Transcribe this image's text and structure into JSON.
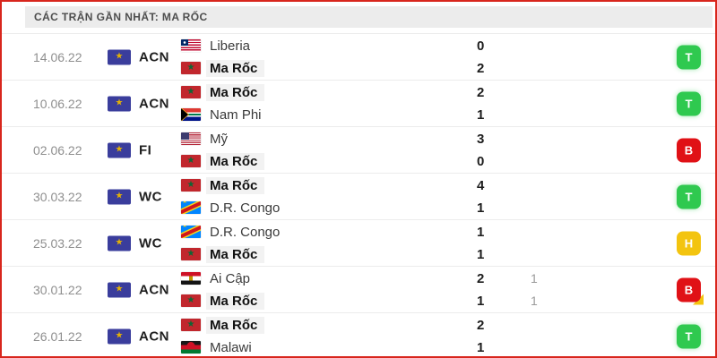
{
  "header": {
    "title": "CÁC TRẬN GẦN NHẤT: MA RỐC"
  },
  "colors": {
    "page_border": "#d8261d",
    "win_badge": "#2fc94f",
    "loss_badge": "#e01116",
    "draw_badge": "#f3c40f",
    "penalty_corner": "#f3c40f",
    "competition_icon_bg": "#3a3d9c",
    "competition_icon_emblem": "#e2b007",
    "header_bg": "#ececec"
  },
  "icons": {
    "competition": "trophy-icon",
    "flags": [
      "liberia",
      "morocco",
      "southafrica",
      "usa",
      "drcongo",
      "egypt",
      "malawi"
    ]
  },
  "matches": [
    {
      "date": "14.06.22",
      "competition": "ACN",
      "home": {
        "team": "Liberia",
        "flag": "liberia",
        "score": "0",
        "score2": "",
        "highlight": false
      },
      "away": {
        "team": "Ma Rốc",
        "flag": "morocco",
        "score": "2",
        "score2": "",
        "highlight": true
      },
      "result": "T",
      "result_type": "win",
      "penalty": false
    },
    {
      "date": "10.06.22",
      "competition": "ACN",
      "home": {
        "team": "Ma Rốc",
        "flag": "morocco",
        "score": "2",
        "score2": "",
        "highlight": true
      },
      "away": {
        "team": "Nam Phi",
        "flag": "southafrica",
        "score": "1",
        "score2": "",
        "highlight": false
      },
      "result": "T",
      "result_type": "win",
      "penalty": false
    },
    {
      "date": "02.06.22",
      "competition": "FI",
      "home": {
        "team": "Mỹ",
        "flag": "usa",
        "score": "3",
        "score2": "",
        "highlight": false
      },
      "away": {
        "team": "Ma Rốc",
        "flag": "morocco",
        "score": "0",
        "score2": "",
        "highlight": true
      },
      "result": "B",
      "result_type": "loss",
      "penalty": false
    },
    {
      "date": "30.03.22",
      "competition": "WC",
      "home": {
        "team": "Ma Rốc",
        "flag": "morocco",
        "score": "4",
        "score2": "",
        "highlight": true
      },
      "away": {
        "team": "D.R. Congo",
        "flag": "drcongo",
        "score": "1",
        "score2": "",
        "highlight": false
      },
      "result": "T",
      "result_type": "win",
      "penalty": false
    },
    {
      "date": "25.03.22",
      "competition": "WC",
      "home": {
        "team": "D.R. Congo",
        "flag": "drcongo",
        "score": "1",
        "score2": "",
        "highlight": false
      },
      "away": {
        "team": "Ma Rốc",
        "flag": "morocco",
        "score": "1",
        "score2": "",
        "highlight": true
      },
      "result": "H",
      "result_type": "draw",
      "penalty": false
    },
    {
      "date": "30.01.22",
      "competition": "ACN",
      "home": {
        "team": "Ai Cập",
        "flag": "egypt",
        "score": "2",
        "score2": "1",
        "highlight": false
      },
      "away": {
        "team": "Ma Rốc",
        "flag": "morocco",
        "score": "1",
        "score2": "1",
        "highlight": true
      },
      "result": "B",
      "result_type": "loss",
      "penalty": true
    },
    {
      "date": "26.01.22",
      "competition": "ACN",
      "home": {
        "team": "Ma Rốc",
        "flag": "morocco",
        "score": "2",
        "score2": "",
        "highlight": true
      },
      "away": {
        "team": "Malawi",
        "flag": "malawi",
        "score": "1",
        "score2": "",
        "highlight": false
      },
      "result": "T",
      "result_type": "win",
      "penalty": false
    }
  ]
}
